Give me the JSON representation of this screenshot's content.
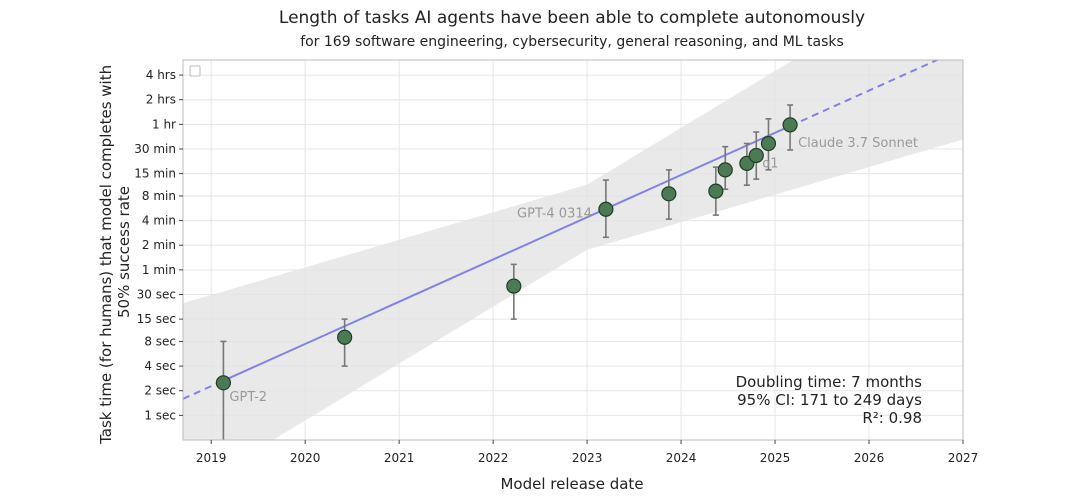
{
  "chart_data": {
    "type": "scatter",
    "title": "Length of tasks AI agents have been able to complete autonomously",
    "subtitle": "for 169 software engineering, cybersecurity, general reasoning, and ML tasks",
    "xlabel": "Model release date",
    "ylabel": "Task time (for humans) that model completes with 50% success rate",
    "y_scale": "log",
    "y_unit": "seconds",
    "xlim": [
      2018.7,
      2027.0
    ],
    "ylim_seconds": [
      0.5,
      22000
    ],
    "x_ticks": [
      2019,
      2020,
      2021,
      2022,
      2023,
      2024,
      2025,
      2026,
      2027
    ],
    "y_ticks": [
      {
        "label": "1 sec",
        "seconds": 1
      },
      {
        "label": "2 sec",
        "seconds": 2
      },
      {
        "label": "4 sec",
        "seconds": 4
      },
      {
        "label": "8 sec",
        "seconds": 8
      },
      {
        "label": "15 sec",
        "seconds": 15
      },
      {
        "label": "30 sec",
        "seconds": 30
      },
      {
        "label": "1 min",
        "seconds": 60
      },
      {
        "label": "2 min",
        "seconds": 120
      },
      {
        "label": "4 min",
        "seconds": 240
      },
      {
        "label": "8 min",
        "seconds": 480
      },
      {
        "label": "15 min",
        "seconds": 900
      },
      {
        "label": "30 min",
        "seconds": 1800
      },
      {
        "label": "1 hr",
        "seconds": 3600
      },
      {
        "label": "2 hrs",
        "seconds": 7200
      },
      {
        "label": "4 hrs",
        "seconds": 14400
      }
    ],
    "points": [
      {
        "x": 2019.13,
        "y": 2.5,
        "lo": 0.3,
        "hi": 8,
        "label": "GPT-2"
      },
      {
        "x": 2020.42,
        "y": 9,
        "lo": 4,
        "hi": 15,
        "label": ""
      },
      {
        "x": 2022.22,
        "y": 38,
        "lo": 15,
        "hi": 70,
        "label": ""
      },
      {
        "x": 2023.2,
        "y": 330,
        "lo": 150,
        "hi": 750,
        "label": "GPT-4 0314"
      },
      {
        "x": 2023.87,
        "y": 510,
        "lo": 250,
        "hi": 1000,
        "label": ""
      },
      {
        "x": 2024.37,
        "y": 550,
        "lo": 280,
        "hi": 1080,
        "label": ""
      },
      {
        "x": 2024.47,
        "y": 1000,
        "lo": 580,
        "hi": 1920,
        "label": ""
      },
      {
        "x": 2024.7,
        "y": 1200,
        "lo": 650,
        "hi": 2100,
        "label": ""
      },
      {
        "x": 2024.8,
        "y": 1500,
        "lo": 770,
        "hi": 2900,
        "label": "o1"
      },
      {
        "x": 2024.93,
        "y": 2100,
        "lo": 1000,
        "hi": 4200,
        "label": ""
      },
      {
        "x": 2025.16,
        "y": 3550,
        "lo": 1750,
        "hi": 6200,
        "label": "Claude 3.7 Sonnet"
      }
    ],
    "trend": {
      "solid_range": [
        2019.13,
        2025.16
      ],
      "x_at_1hr": 2025.2,
      "doubling_time_months": 7,
      "ci_band_low_factor": 0.4,
      "ci_band_high_factor": 2.5
    },
    "stats": {
      "doubling": "Doubling time: 7 months",
      "ci": "95% CI: 171 to 249 days",
      "r2": "R²: 0.98"
    },
    "legend": "top-left",
    "grid": true,
    "colors": {
      "point_fill": "#4b7a55",
      "point_stroke": "#1f3d28",
      "trend": "#7f82e6",
      "band": "#e3e3e3",
      "grid": "#e6e6e6",
      "errorbar": "#777777"
    }
  }
}
